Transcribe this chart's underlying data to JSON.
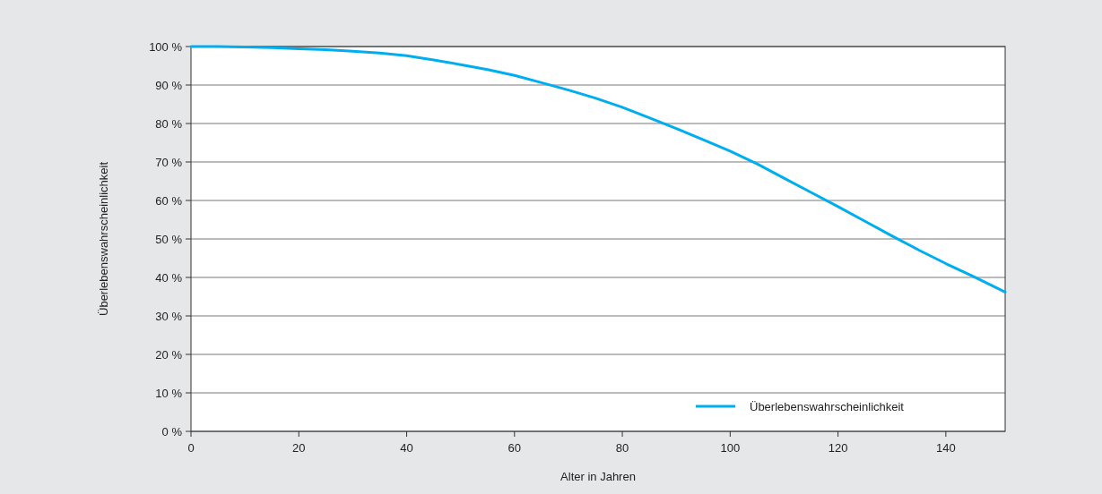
{
  "chart_data": {
    "type": "line",
    "xlabel": "Alter in Jahren",
    "ylabel": "Überlebenswahrscheinlichkeit",
    "series": [
      {
        "name": "Überlebenswahrscheinlichkeit",
        "color": "#00aeef",
        "x": [
          0,
          5,
          10,
          15,
          20,
          25,
          30,
          35,
          40,
          45,
          50,
          55,
          60,
          65,
          70,
          75,
          80,
          85,
          90,
          95,
          100,
          105,
          110,
          115,
          120,
          125,
          130,
          135,
          140,
          145,
          151
        ],
        "values": [
          100,
          100,
          99.9,
          99.7,
          99.4,
          99.2,
          98.8,
          98.3,
          97.6,
          96.5,
          95.3,
          94,
          92.5,
          90.6,
          88.7,
          86.6,
          84.2,
          81.5,
          78.7,
          75.8,
          72.8,
          69.5,
          65.8,
          62.1,
          58.4,
          54.6,
          50.8,
          47.1,
          43.6,
          40.3,
          36.2
        ]
      }
    ],
    "xlim": [
      0,
      151
    ],
    "xticks": [
      0,
      20,
      40,
      60,
      80,
      100,
      120,
      140
    ],
    "ylim": [
      0,
      100
    ],
    "yticks": [
      {
        "value": 0,
        "label": "0 %"
      },
      {
        "value": 10,
        "label": "10 %"
      },
      {
        "value": 20,
        "label": "20 %"
      },
      {
        "value": 30,
        "label": "30 %"
      },
      {
        "value": 40,
        "label": "40 %"
      },
      {
        "value": 50,
        "label": "50 %"
      },
      {
        "value": 60,
        "label": "60 %"
      },
      {
        "value": 70,
        "label": "70 %"
      },
      {
        "value": 80,
        "label": "80 %"
      },
      {
        "value": 90,
        "label": "90 %"
      },
      {
        "value": 100,
        "label": "100 %"
      }
    ],
    "grid": "y",
    "legend": "bottom right",
    "marker": "none",
    "line_style": "solid"
  }
}
